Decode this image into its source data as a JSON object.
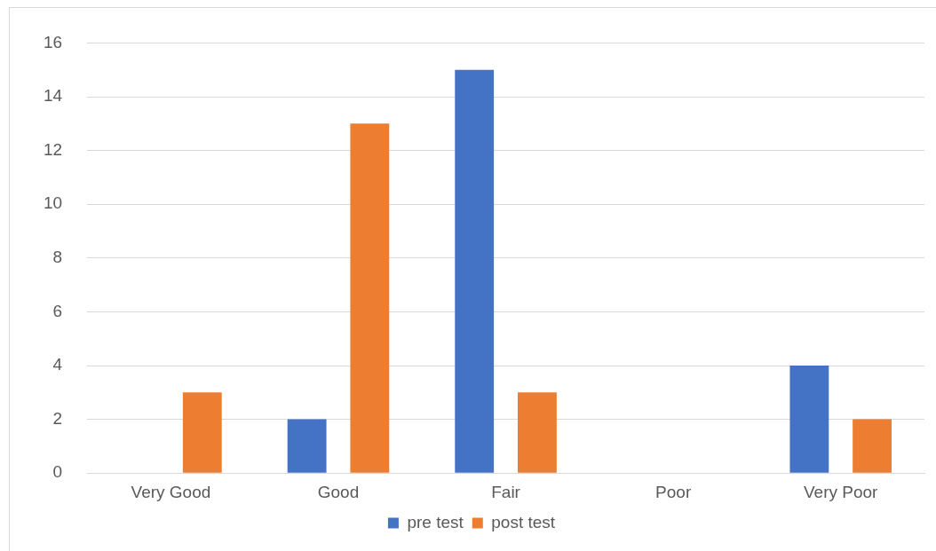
{
  "chart_data": {
    "type": "bar",
    "categories": [
      "Very Good",
      "Good",
      "Fair",
      "Poor",
      "Very Poor"
    ],
    "series": [
      {
        "name": "pre test",
        "color": "#4472c4",
        "values": [
          0,
          2,
          15,
          0,
          4
        ]
      },
      {
        "name": "post test",
        "color": "#ed7d31",
        "values": [
          3,
          13,
          3,
          0,
          2
        ]
      }
    ],
    "ylim": [
      0,
      16
    ],
    "yticks": [
      0,
      2,
      4,
      6,
      8,
      10,
      12,
      14,
      16
    ],
    "grid": "y",
    "legend": "bottom"
  }
}
